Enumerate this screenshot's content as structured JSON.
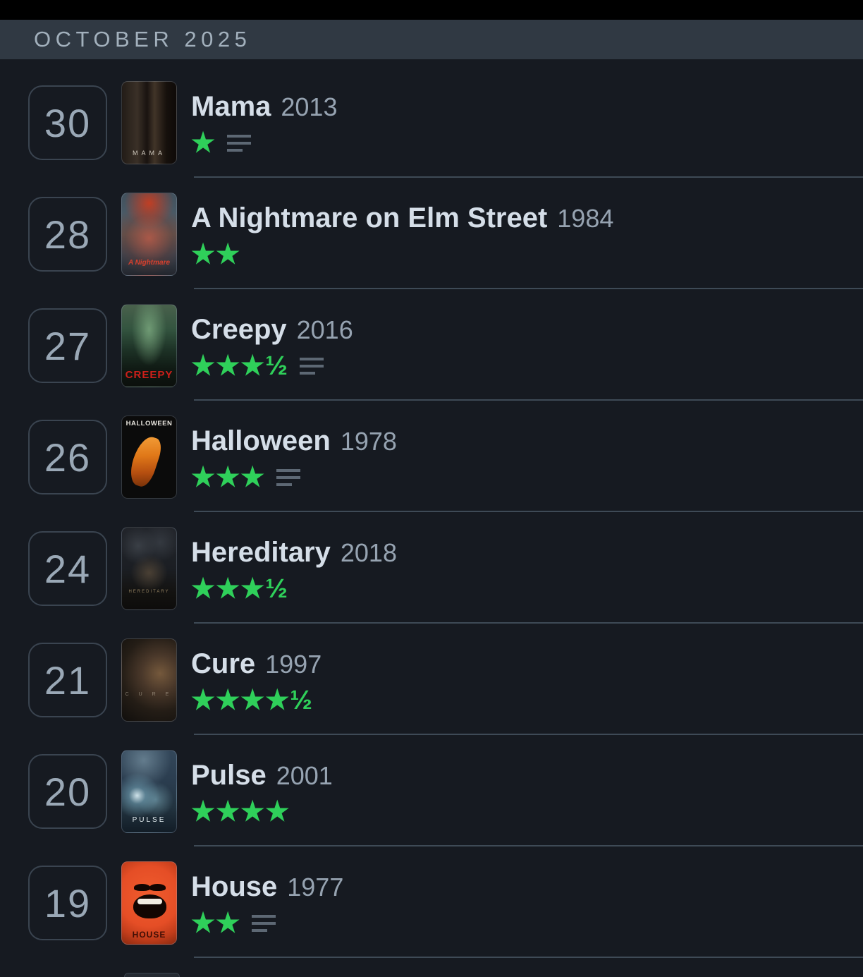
{
  "header": {
    "title": "OCTOBER 2025"
  },
  "colors": {
    "star_green": "#2fd05a",
    "page_bg": "#161a21",
    "header_bg": "#303943",
    "divider": "#3e4a56"
  },
  "diary": {
    "star_char": "★",
    "half_char": "½",
    "entries": [
      {
        "day": "30",
        "title": "Mama",
        "year": "2013",
        "stars": 1,
        "half": false,
        "review": true,
        "poster_key": "mama",
        "poster_text": "MAMA"
      },
      {
        "day": "28",
        "title": "A Nightmare on Elm Street",
        "year": "1984",
        "stars": 2,
        "half": false,
        "review": false,
        "poster_key": "nightmare",
        "poster_text": "A Nightmare"
      },
      {
        "day": "27",
        "title": "Creepy",
        "year": "2016",
        "stars": 3,
        "half": true,
        "review": true,
        "poster_key": "creepy",
        "poster_text": "CREEPY"
      },
      {
        "day": "26",
        "title": "Halloween",
        "year": "1978",
        "stars": 3,
        "half": false,
        "review": true,
        "poster_key": "halloween",
        "poster_text": "HALLOWEEN"
      },
      {
        "day": "24",
        "title": "Hereditary",
        "year": "2018",
        "stars": 3,
        "half": true,
        "review": false,
        "poster_key": "hereditary",
        "poster_text": "HEREDITARY"
      },
      {
        "day": "21",
        "title": "Cure",
        "year": "1997",
        "stars": 4,
        "half": true,
        "review": false,
        "poster_key": "cure",
        "poster_text": "C U R E"
      },
      {
        "day": "20",
        "title": "Pulse",
        "year": "2001",
        "stars": 4,
        "half": false,
        "review": false,
        "poster_key": "pulse",
        "poster_text": "PULSE"
      },
      {
        "day": "19",
        "title": "House",
        "year": "1977",
        "stars": 2,
        "half": false,
        "review": true,
        "poster_key": "house",
        "poster_text": "HOUSE"
      }
    ]
  }
}
